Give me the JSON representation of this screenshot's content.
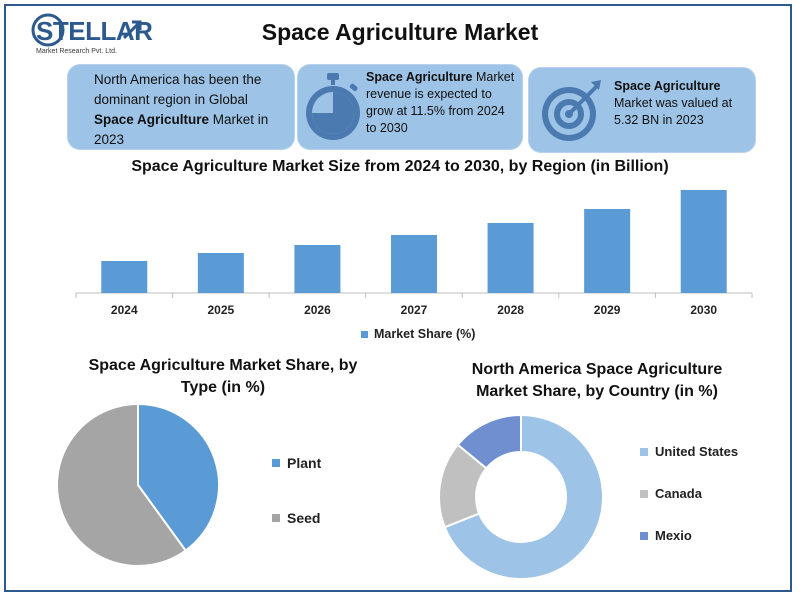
{
  "header": {
    "logo_text": "STELLAR",
    "logo_sub": "Market Research Pvt. Ltd.",
    "title": "Space Agriculture Market"
  },
  "info_boxes": [
    {
      "pre": "North America has been the dominant region in Global ",
      "bold": "Space Agriculture",
      "post": " Market in 2023",
      "icon": "none"
    },
    {
      "pre": "",
      "bold": "Space Agriculture",
      "post": " Market revenue is expected to grow at 11.5% from 2024 to 2030",
      "icon": "stopwatch-icon"
    },
    {
      "pre": "",
      "bold": "Space Agriculture",
      "post": " Market was valued at 5.32 BN in 2023",
      "icon": "target-icon"
    }
  ],
  "colors": {
    "box_bg": "#9dc3e6",
    "bar": "#5b9bd5",
    "plant": "#5b9bd5",
    "seed": "#a5a5a5",
    "us": "#9dc3e6",
    "canada": "#c0c0c0",
    "mexico": "#6f8fd0",
    "border": "#2c5a8e"
  },
  "chart_data": [
    {
      "type": "bar",
      "title": "Space Agriculture Market Size from 2024 to 2030, by Region (in Billion)",
      "categories": [
        "2024",
        "2025",
        "2026",
        "2027",
        "2028",
        "2029",
        "2030"
      ],
      "series": [
        {
          "name": "Market Share (%)",
          "values": [
            32,
            40,
            48,
            58,
            70,
            84,
            103
          ]
        }
      ],
      "ylim": [
        0,
        110
      ],
      "grid": false,
      "legend": "bottom"
    },
    {
      "type": "pie",
      "title": "Space Agriculture Market Share, by Type (in %)",
      "labels": [
        "Plant",
        "Seed"
      ],
      "values": [
        40,
        60
      ],
      "legend": "right"
    },
    {
      "type": "pie",
      "subtype": "donut",
      "title": "North America Space Agriculture Market Share, by Country (in %)",
      "labels": [
        "United States",
        "Canada",
        "Mexio"
      ],
      "values": [
        69,
        17,
        14
      ],
      "legend": "right"
    }
  ]
}
